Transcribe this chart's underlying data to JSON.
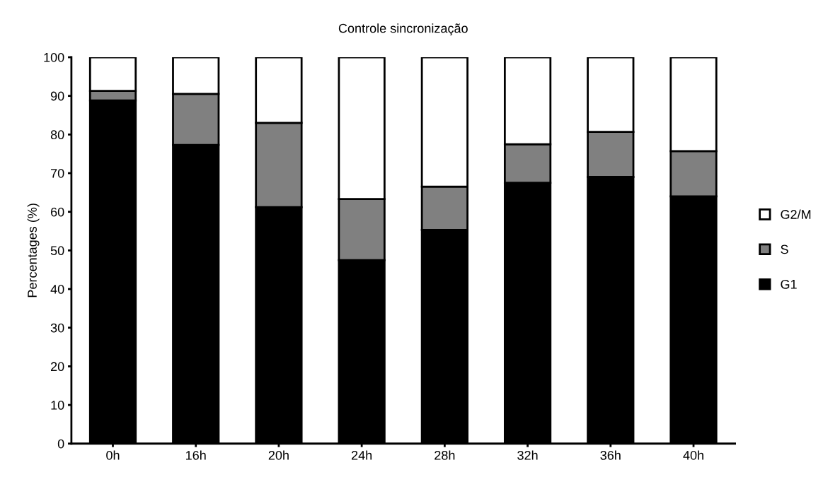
{
  "chart_data": {
    "type": "bar",
    "title": "Controle sincronização",
    "ylabel": "Percentages (%)",
    "categories": [
      "0h",
      "16h",
      "20h",
      "24h",
      "28h",
      "32h",
      "36h",
      "40h"
    ],
    "stacked": true,
    "series": [
      {
        "name": "G1",
        "color": "#000000",
        "values": [
          88.8,
          77.3,
          61.2,
          47.5,
          55.3,
          67.5,
          69,
          64
        ]
      },
      {
        "name": "S",
        "color": "#808080",
        "values": [
          2.5,
          13.2,
          21.8,
          15.8,
          11.2,
          10,
          11.7,
          11.7
        ]
      },
      {
        "name": "G2/M",
        "color": "#ffffff",
        "values": [
          8.7,
          9.5,
          17,
          36.7,
          33.5,
          22.5,
          19.3,
          24.3
        ]
      }
    ],
    "ylim": [
      0,
      100
    ],
    "yticks": [
      0,
      10,
      20,
      30,
      40,
      50,
      60,
      70,
      80,
      90,
      100
    ],
    "grid": false,
    "legend": "right"
  }
}
